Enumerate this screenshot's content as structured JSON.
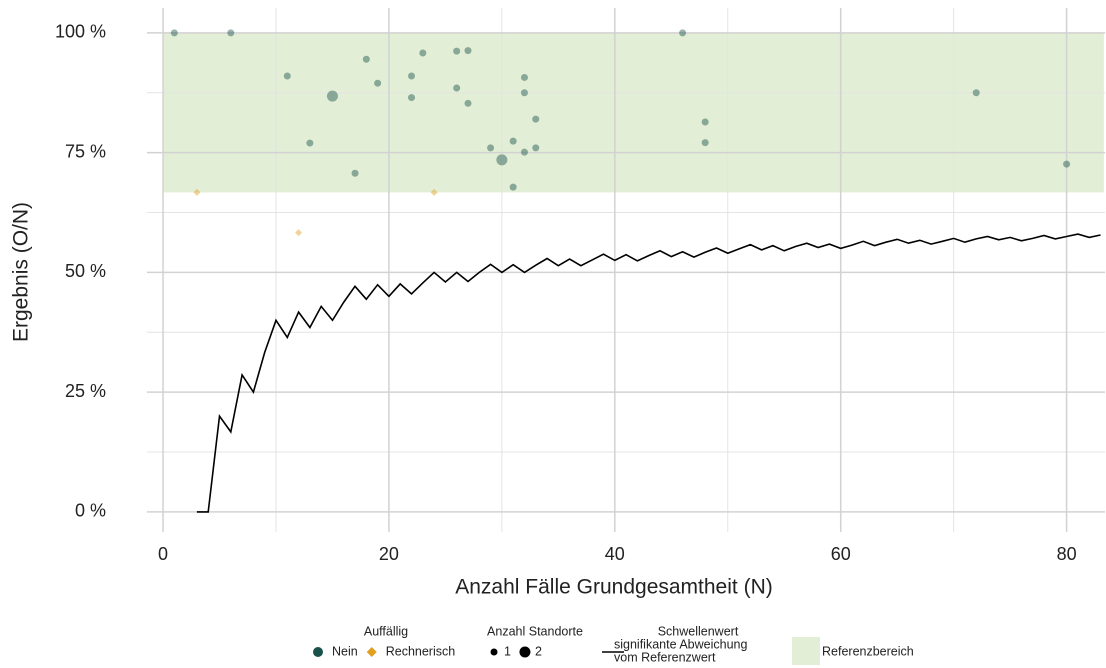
{
  "chart_data": {
    "type": "scatter",
    "x_label": "Anzahl Fälle Grundgesamtheit (N)",
    "y_label": "Ergebnis (O/N)",
    "xlim": [
      -1.42,
      83.4
    ],
    "ylim": [
      -4.2,
      105.2
    ],
    "xticks": [
      0,
      20,
      40,
      60,
      80
    ],
    "xminorticks": [
      10,
      30,
      50,
      70
    ],
    "yticks": [
      {
        "value": 0,
        "label": "0 %"
      },
      {
        "value": 25,
        "label": "25 %"
      },
      {
        "value": 50,
        "label": "50 %"
      },
      {
        "value": 75,
        "label": "75 %"
      },
      {
        "value": 100,
        "label": "100 %"
      }
    ],
    "yminorticks": [
      12.5,
      37.5,
      62.5,
      87.5
    ],
    "grid": true,
    "color_legend_title": "Auffällig",
    "size_legend": {
      "title": "Anzahl Standorte",
      "labels": [
        1,
        2
      ]
    },
    "series": [
      {
        "name": "Nein",
        "color": "#1a524b",
        "marker": "circle",
        "x": [
          1,
          6,
          11,
          13,
          15,
          17,
          18,
          19,
          22,
          22,
          23,
          26,
          26,
          27,
          27,
          29,
          30,
          31,
          31,
          32,
          32,
          32,
          33,
          33,
          46,
          48,
          48,
          72,
          80
        ],
        "values": [
          100,
          100,
          91,
          77,
          86.8,
          70.7,
          94.5,
          89.5,
          91,
          86.5,
          95.8,
          96.2,
          88.5,
          96.3,
          85.3,
          76,
          73.5,
          77.4,
          67.8,
          90.7,
          87.5,
          75.1,
          82,
          76,
          100,
          81.4,
          77.1,
          87.5,
          72.6
        ],
        "sizes": [
          1,
          1,
          1,
          1,
          2,
          1,
          1,
          1,
          1,
          1,
          1,
          1,
          1,
          1,
          1,
          1,
          2,
          1,
          1,
          1,
          1,
          1,
          1,
          1,
          1,
          1,
          1,
          1,
          1
        ]
      },
      {
        "name": "Rechnerisch",
        "color": "#e0a020",
        "marker": "diamond",
        "x": [
          3,
          12,
          24
        ],
        "values": [
          66.7,
          58.3,
          66.7
        ],
        "sizes": [
          1,
          1,
          1
        ]
      }
    ],
    "line": {
      "name": [
        "Schwellenwert",
        "signifikante Abweichung",
        "vom Referenzwert"
      ],
      "color": "#000000",
      "x": [
        3,
        4,
        5,
        6,
        7,
        8,
        9,
        10,
        11,
        12,
        13,
        14,
        15,
        16,
        17,
        18,
        19,
        20,
        21,
        22,
        23,
        24,
        25,
        26,
        27,
        28,
        29,
        30,
        31,
        32,
        33,
        34,
        35,
        36,
        37,
        38,
        39,
        40,
        41,
        42,
        43,
        44,
        45,
        46,
        47,
        48,
        49,
        50,
        51,
        52,
        53,
        54,
        55,
        56,
        57,
        58,
        59,
        60,
        61,
        62,
        63,
        64,
        65,
        66,
        67,
        68,
        69,
        70,
        71,
        72,
        73,
        74,
        75,
        76,
        77,
        78,
        79,
        80,
        81,
        82,
        83
      ],
      "values": [
        0,
        0,
        20,
        16.7,
        28.6,
        25,
        33.3,
        40,
        36.4,
        41.7,
        38.5,
        42.9,
        40,
        43.8,
        47.1,
        44.4,
        47.4,
        45,
        47.6,
        45.5,
        47.8,
        50,
        48,
        50,
        48.1,
        50,
        51.7,
        50,
        51.6,
        50,
        51.5,
        52.9,
        51.4,
        52.8,
        51.4,
        52.6,
        53.8,
        52.5,
        53.7,
        52.4,
        53.5,
        54.5,
        53.3,
        54.3,
        53.2,
        54.2,
        55.1,
        54,
        54.9,
        55.8,
        54.7,
        55.6,
        54.5,
        55.4,
        56.1,
        55.2,
        55.9,
        55,
        55.7,
        56.5,
        55.6,
        56.3,
        56.9,
        56.1,
        56.7,
        55.9,
        56.5,
        57.1,
        56.3,
        57,
        57.5,
        56.8,
        57.3,
        56.6,
        57.1,
        57.7,
        57,
        57.5,
        58,
        57.3,
        57.8
      ]
    },
    "band": {
      "name": "Referenzbereich",
      "color": "#e2eed5",
      "xlim": [
        0,
        83.3
      ],
      "ylim": [
        66.7,
        100
      ]
    }
  }
}
